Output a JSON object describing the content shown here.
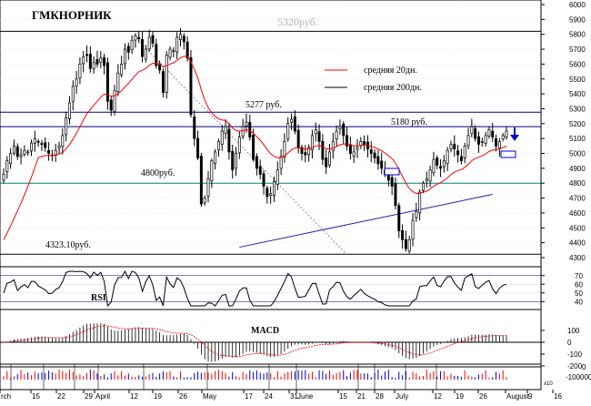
{
  "chart_data": {
    "type": "candlestick",
    "title": "ГМКНОРНИК",
    "watermark": "5320руб.",
    "price_axis": {
      "min": 4300,
      "max": 6000,
      "ticks": [
        4300,
        4400,
        4500,
        4600,
        4700,
        4800,
        4900,
        5000,
        5100,
        5200,
        5300,
        5400,
        5500,
        5600,
        5700,
        5800,
        5900,
        6000
      ]
    },
    "rsi_axis": {
      "ticks": [
        70,
        60,
        50,
        40
      ]
    },
    "macd_axis": {
      "ticks": [
        100,
        0,
        -100,
        -200
      ]
    },
    "volume_axis": {
      "ticks": [
        "0",
        "-100000"
      ],
      "unit": "x10"
    },
    "x_labels": [
      "rch",
      "15",
      "22",
      "29",
      "April",
      "12",
      "19",
      "26",
      "May",
      "17",
      "24",
      "31",
      "June",
      "15",
      "21",
      "28",
      "July",
      "12",
      "19",
      "26",
      "August",
      "9",
      "16"
    ],
    "legend": [
      {
        "label": "средняя 20дн.",
        "color": "#ff0000"
      },
      {
        "label": "средняя 200дн.",
        "color": "#000000"
      }
    ],
    "horizontal_levels": [
      {
        "value": 5820,
        "color": "#000000",
        "label": ""
      },
      {
        "value": 5277,
        "color": "#000080",
        "label": "5277 руб."
      },
      {
        "value": 5180,
        "color": "#000080",
        "label": "5180 руб."
      },
      {
        "value": 4800,
        "color": "#008080",
        "label": "4800руб."
      },
      {
        "value": 4323.1,
        "color": "#000000",
        "label": "4323.10руб."
      }
    ],
    "panel_labels": {
      "rsi": "RSI",
      "macd": "MACD"
    },
    "closes": [
      4860,
      4950,
      5000,
      5050,
      4980,
      4990,
      5020,
      5010,
      5070,
      5100,
      5080,
      5060,
      5040,
      5000,
      4990,
      5020,
      5050,
      5120,
      5240,
      5340,
      5450,
      5500,
      5600,
      5650,
      5660,
      5570,
      5610,
      5600,
      5640,
      5590,
      5350,
      5290,
      5420,
      5540,
      5600,
      5700,
      5680,
      5760,
      5790,
      5770,
      5650,
      5700,
      5780,
      5740,
      5590,
      5560,
      5410,
      5660,
      5700,
      5690,
      5780,
      5800,
      5750,
      5640,
      5260,
      5100,
      4970,
      4660,
      4700,
      4830,
      4950,
      5010,
      5080,
      5150,
      5180,
      5010,
      4890,
      5000,
      5110,
      5180,
      5210,
      5110,
      4960,
      4900,
      4860,
      4780,
      4710,
      4730,
      4810,
      4890,
      4980,
      5080,
      5200,
      5230,
      5150,
      5040,
      5000,
      4990,
      5040,
      5120,
      5160,
      5080,
      4960,
      4910,
      5010,
      5080,
      5150,
      5180,
      5120,
      5050,
      5000,
      5010,
      5040,
      5080,
      5060,
      5030,
      5000,
      4970,
      4930,
      4900,
      4860,
      4820,
      4780,
      4650,
      4480,
      4420,
      4360,
      4420,
      4550,
      4610,
      4740,
      4800,
      4830,
      4890,
      4960,
      4920,
      4900,
      4950,
      5020,
      5060,
      5030,
      4990,
      4950,
      5050,
      5120,
      5180,
      5100,
      5060,
      5080,
      5120,
      5160,
      5110,
      5050,
      5080,
      5120,
      5150
    ]
  }
}
